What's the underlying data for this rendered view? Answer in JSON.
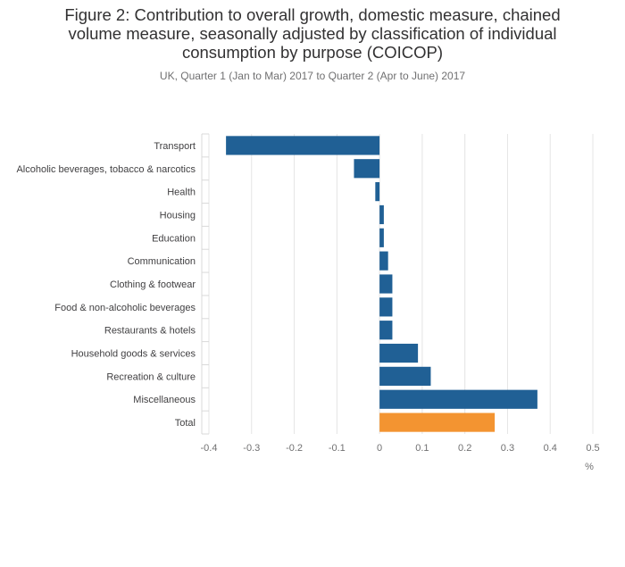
{
  "chart_data": {
    "type": "bar",
    "orientation": "horizontal",
    "title": "Figure 2: Contribution to overall growth, domestic measure, chained volume measure, seasonally adjusted by classification of individual consumption by purpose (COICOP)",
    "subtitle": "UK, Quarter 1 (Jan to Mar) 2017 to Quarter 2 (Apr to June) 2017",
    "xlabel": "%",
    "categories": [
      "Transport",
      "Alcoholic beverages, tobacco & narcotics",
      "Health",
      "Housing",
      "Education",
      "Communication",
      "Clothing & footwear",
      "Food & non-alcoholic beverages",
      "Restaurants & hotels",
      "Household goods & services",
      "Recreation & culture",
      "Miscellaneous",
      "Total"
    ],
    "values": [
      -0.36,
      -0.06,
      -0.01,
      0.01,
      0.01,
      0.02,
      0.03,
      0.03,
      0.03,
      0.09,
      0.12,
      0.37,
      0.27
    ],
    "highlight_category": "Total",
    "xlim": [
      -0.4,
      0.5
    ],
    "xticks": [
      -0.4,
      -0.3,
      -0.2,
      -0.1,
      0,
      0.1,
      0.2,
      0.3,
      0.4,
      0.5
    ],
    "xtick_labels": [
      "-0.4",
      "-0.3",
      "-0.2",
      "-0.1",
      "0",
      "0.1",
      "0.2",
      "0.3",
      "0.4",
      "0.5"
    ],
    "grid": true,
    "colors": {
      "bar": "#206095",
      "highlight": "#f39431",
      "grid": "#e4e4e4"
    }
  }
}
